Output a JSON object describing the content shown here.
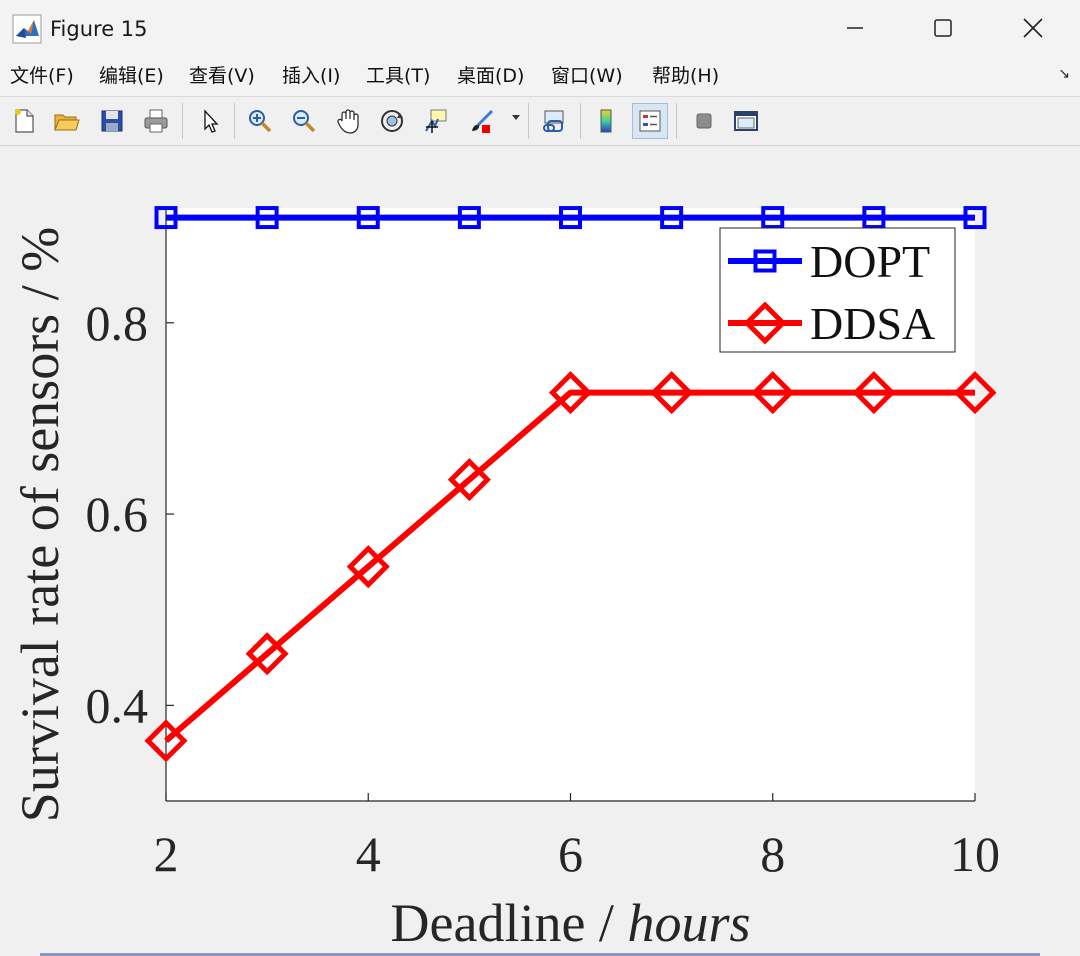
{
  "window": {
    "title": "Figure 15",
    "controls": [
      "minimize",
      "maximize",
      "close"
    ]
  },
  "menu": {
    "items": [
      "文件(F)",
      "编辑(E)",
      "查看(V)",
      "插入(I)",
      "工具(T)",
      "桌面(D)",
      "窗口(W)",
      "帮助(H)"
    ]
  },
  "toolbar": {
    "icons": [
      "new-figure-icon",
      "open-file-icon",
      "save-icon",
      "print-icon",
      "pointer-icon",
      "zoom-in-icon",
      "zoom-out-icon",
      "pan-hand-icon",
      "rotate-3d-icon",
      "data-cursor-icon",
      "brush-icon",
      "link-plot-icon",
      "colorbar-icon",
      "legend-icon",
      "hide-tools-icon",
      "docked-tools-icon"
    ],
    "active": "legend-icon"
  },
  "chart_data": {
    "type": "line",
    "title": "",
    "xlabel": "Deadline",
    "xlabel_unit": "/ hours",
    "ylabel": "Survival rate of sensors / %",
    "xlim": [
      2,
      10
    ],
    "ylim": [
      0.3,
      0.92
    ],
    "xticks": [
      "2",
      "4",
      "6",
      "8",
      "10"
    ],
    "yticks": [
      "0.4",
      "0.6",
      "0.8"
    ],
    "x": [
      2,
      3,
      4,
      5,
      6,
      7,
      8,
      9,
      10
    ],
    "legend_position": "top-right",
    "series": [
      {
        "name": "DOPT",
        "color": "#0000ff",
        "marker": "square",
        "values": [
          0.91,
          0.91,
          0.91,
          0.91,
          0.91,
          0.91,
          0.91,
          0.91,
          0.91
        ]
      },
      {
        "name": "DDSA",
        "color": "#ff0000",
        "marker": "diamond",
        "values": [
          0.363,
          0.454,
          0.545,
          0.636,
          0.727,
          0.727,
          0.727,
          0.727,
          0.727
        ]
      }
    ]
  }
}
